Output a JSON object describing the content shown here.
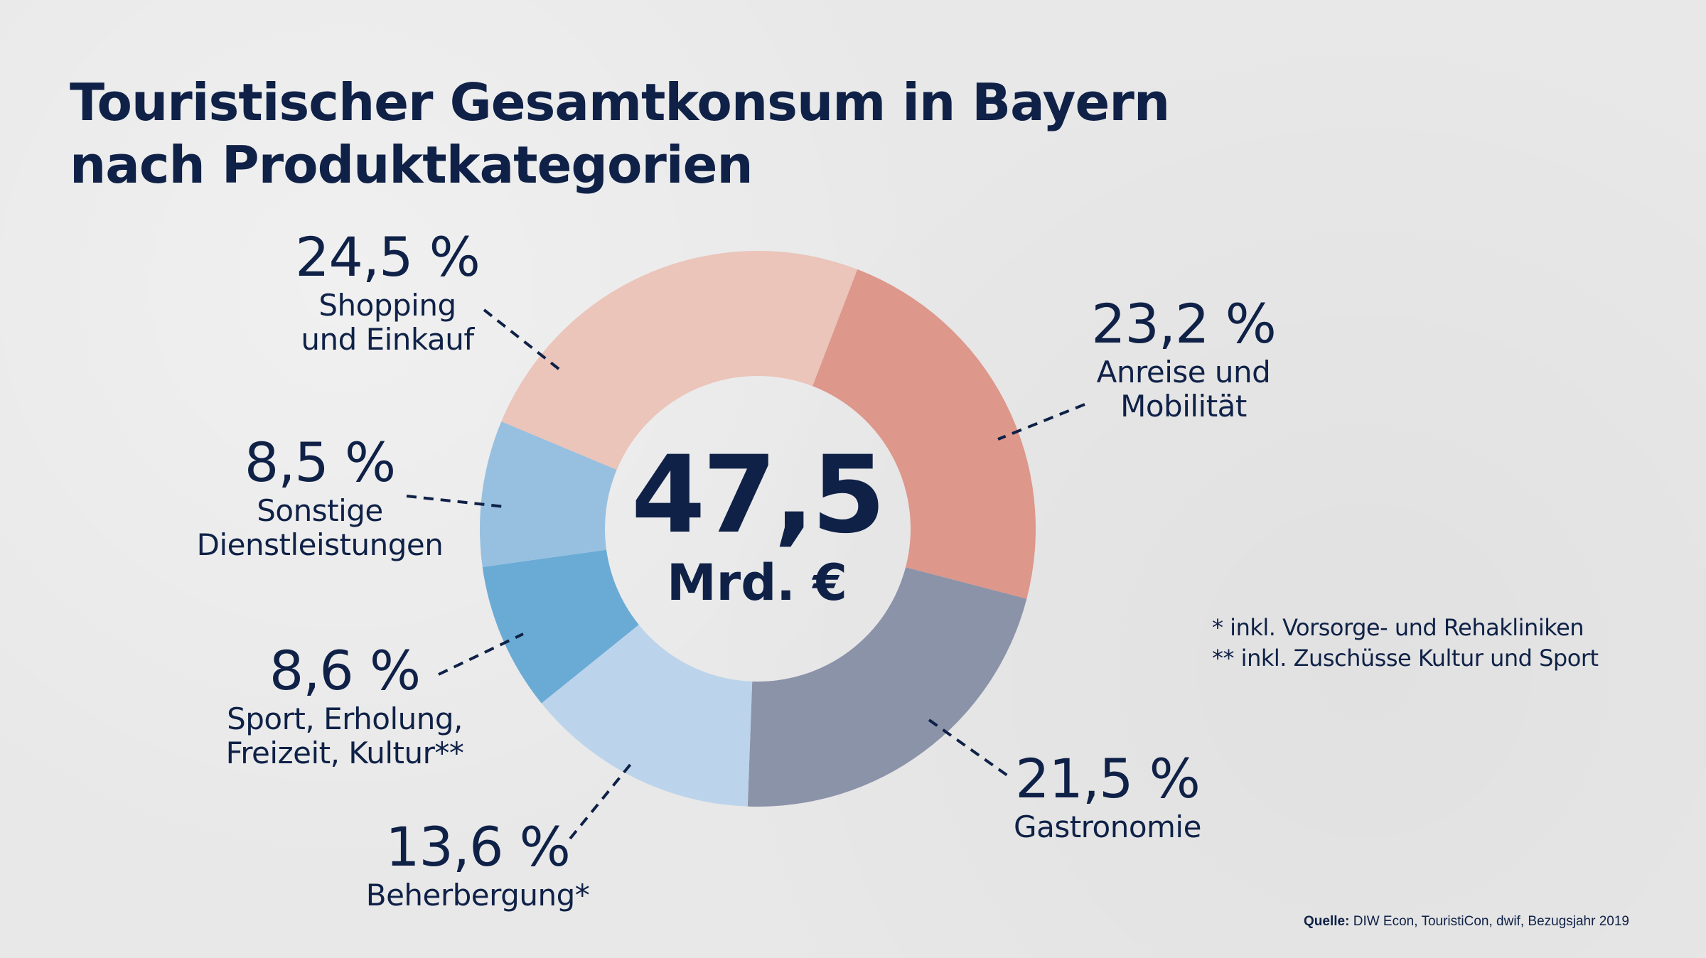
{
  "title": {
    "line1": "Touristischer Gesamtkonsum in Bayern",
    "line2": "nach Produktkategorien"
  },
  "center": {
    "value": "47,5",
    "unit": "Mrd. €"
  },
  "labels": {
    "anreise": {
      "pct": "23,2 %",
      "line1": "Anreise und",
      "line2": "Mobilität"
    },
    "gastronomie": {
      "pct": "21,5 %",
      "line1": "Gastronomie"
    },
    "beherbergung": {
      "pct": "13,6 %",
      "line1": "Beherbergung*"
    },
    "sport": {
      "pct": "8,6 %",
      "line1": "Sport, Erholung,",
      "line2": "Freizeit, Kultur**"
    },
    "sonstige": {
      "pct": "8,5 %",
      "line1": "Sonstige",
      "line2": "Dienstleistungen"
    },
    "shopping": {
      "pct": "24,5 %",
      "line1": "Shopping",
      "line2": "und Einkauf"
    }
  },
  "notes": {
    "note1": "* inkl. Vorsorge- und Rehakliniken",
    "note2": "** inkl. Zuschüsse Kultur und Sport"
  },
  "source": {
    "label": "Quelle:",
    "text": " DIW Econ, TouristiCon, dwif, Bezugsjahr 2019"
  },
  "colors": {
    "text": "#0f2147",
    "anreise": "#dd978b",
    "gastronomie": "#8b93a9",
    "beherbergung": "#bcd4eb",
    "sport": "#6aabd5",
    "sonstige": "#97c0e0",
    "shopping": "#ebc4ba"
  },
  "chart_data": {
    "type": "pie",
    "variant": "donut",
    "title": "Touristischer Gesamtkonsum in Bayern nach Produktkategorien",
    "total_label": "47,5 Mrd. €",
    "total_value": 47.5,
    "unit": "%",
    "categories": [
      "Anreise und Mobilität",
      "Gastronomie",
      "Beherbergung*",
      "Sport, Erholung, Freizeit, Kultur**",
      "Sonstige Dienstleistungen",
      "Shopping und Einkauf"
    ],
    "keys": [
      "anreise",
      "gastronomie",
      "beherbergung",
      "sport",
      "sonstige",
      "shopping"
    ],
    "values": [
      23.2,
      21.5,
      13.6,
      8.6,
      8.5,
      24.5
    ],
    "order": "clockwise",
    "legend": "direct-labels"
  }
}
